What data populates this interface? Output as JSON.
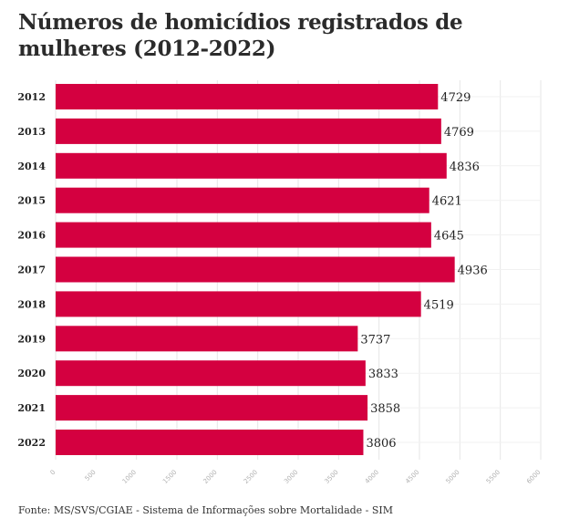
{
  "title": "Números de homicídios registrados de mulheres (2012-2022)",
  "source": "Fonte: MS/SVS/CGIAE - Sistema de Informações sobre Mortalidade - SIM",
  "colors": {
    "bar": "#d40040",
    "grid": "#e6e6e6",
    "tick": "#b0b0b0"
  },
  "chart_data": {
    "type": "bar",
    "orientation": "horizontal",
    "title": "Números de homicídios registrados de mulheres (2012-2022)",
    "categories": [
      "2012",
      "2013",
      "2014",
      "2015",
      "2016",
      "2017",
      "2018",
      "2019",
      "2020",
      "2021",
      "2022"
    ],
    "values": [
      4729,
      4769,
      4836,
      4621,
      4645,
      4936,
      4519,
      3737,
      3833,
      3858,
      3806
    ],
    "xlim": [
      0,
      6000
    ],
    "xticks": [
      0,
      500,
      1000,
      1500,
      2000,
      2500,
      3000,
      3500,
      4000,
      4500,
      5000,
      5500,
      6000
    ],
    "grid": true,
    "data_labels": true
  }
}
